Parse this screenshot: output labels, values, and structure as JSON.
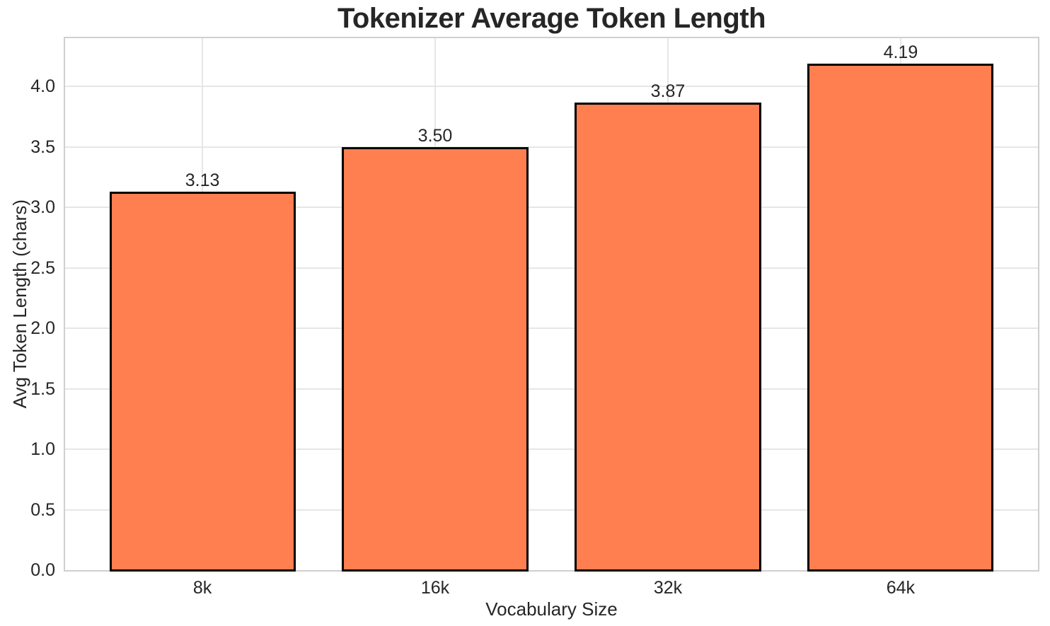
{
  "chart_data": {
    "type": "bar",
    "title": "Tokenizer Average Token Length",
    "xlabel": "Vocabulary Size",
    "ylabel": "Avg Token Length (chars)",
    "categories": [
      "8k",
      "16k",
      "32k",
      "64k"
    ],
    "values": [
      3.13,
      3.5,
      3.87,
      4.19
    ],
    "value_labels": [
      "3.13",
      "3.50",
      "3.87",
      "4.19"
    ],
    "ylim": [
      0,
      4.4
    ],
    "yticks": [
      0,
      0.5,
      1,
      1.5,
      2,
      2.5,
      3,
      3.5,
      4
    ],
    "ytick_labels": [
      "0.0",
      "0.5",
      "1.0",
      "1.5",
      "2.0",
      "2.5",
      "3.0",
      "3.5",
      "4.0"
    ],
    "grid": true,
    "legend": "none",
    "bar_width_frac": 0.8,
    "colors": {
      "bar_fill": "#FF7F50",
      "bar_edge": "#000000",
      "grid": "#e6e6e6",
      "spine": "#cfcfcf",
      "text": "#262626",
      "background": "#ffffff"
    }
  }
}
